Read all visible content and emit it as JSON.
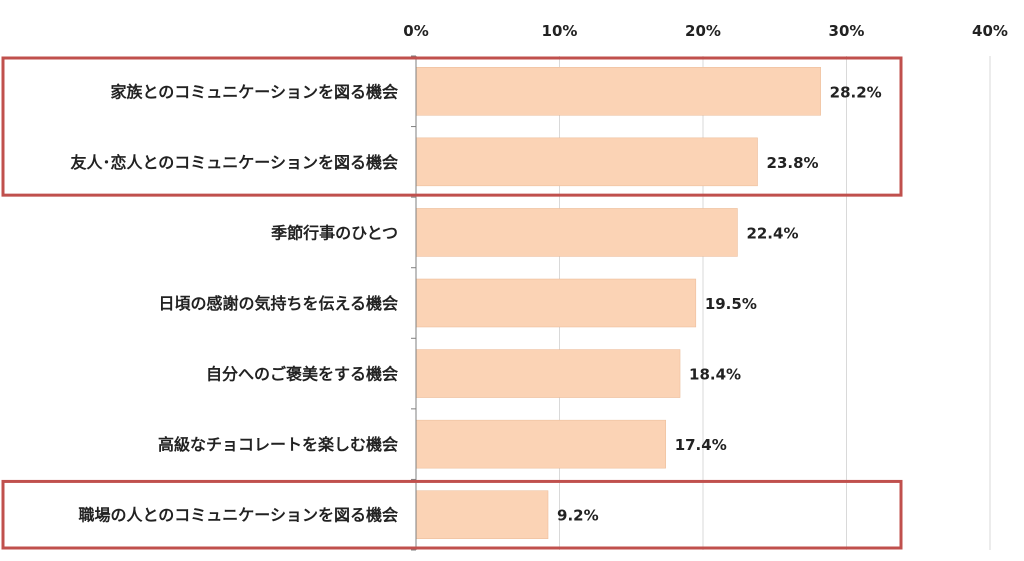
{
  "chart_data": {
    "type": "bar",
    "orientation": "horizontal",
    "categories": [
      "家族とのコミュニケーションを図る機会",
      "友人･恋人とのコミュニケーションを図る機会",
      "季節行事のひとつ",
      "日頃の感謝の気持ちを伝える機会",
      "自分へのご褒美をする機会",
      "高級なチョコレートを楽しむ機会",
      "職場の人とのコミュニケーションを図る機会"
    ],
    "values": [
      28.2,
      23.8,
      22.4,
      19.5,
      18.4,
      17.4,
      9.2
    ],
    "value_labels": [
      "28.2%",
      "23.8%",
      "22.4%",
      "19.5%",
      "18.4%",
      "17.4%",
      "9.2%"
    ],
    "xlim": [
      0,
      40
    ],
    "x_ticks": [
      0,
      10,
      20,
      30,
      40
    ],
    "x_tick_labels": [
      "0%",
      "10%",
      "20%",
      "30%",
      "40%"
    ],
    "x_axis_position": "top",
    "grid": true,
    "highlight_groups": [
      [
        0,
        1
      ],
      [
        6
      ]
    ],
    "colors": {
      "bar": "#fbd3b5",
      "bar_border": "#e9b894",
      "highlight_box": "#c0504d",
      "grid": "#d9d9d9",
      "axis": "#7f7f7f"
    }
  }
}
